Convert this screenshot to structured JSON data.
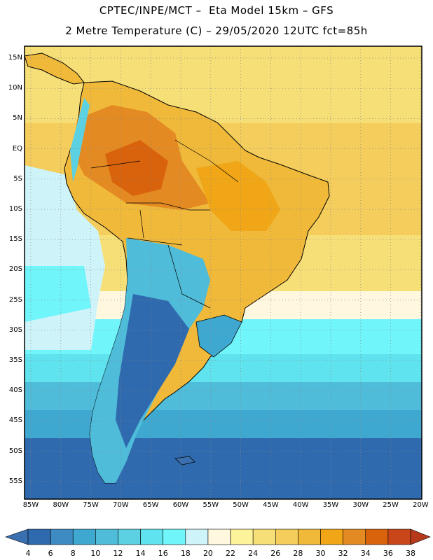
{
  "header": {
    "line1": "CPTEC/INPE/MCT –  Eta Model 15km – GFS",
    "line2": "2 Metre Temperature (C) – 29/05/2020 12UTC fct=85h"
  },
  "map": {
    "lat_labels": [
      "15N",
      "10N",
      "5N",
      "EQ",
      "5S",
      "10S",
      "15S",
      "20S",
      "25S",
      "30S",
      "35S",
      "40S",
      "45S",
      "50S",
      "55S"
    ],
    "lon_labels": [
      "85W",
      "80W",
      "75W",
      "70W",
      "65W",
      "60W",
      "55W",
      "50W",
      "45W",
      "40W",
      "35W",
      "30W",
      "25W",
      "20W"
    ]
  },
  "colorbar": {
    "levels": [
      4,
      6,
      8,
      10,
      12,
      14,
      16,
      18,
      20,
      22,
      24,
      26,
      28,
      30,
      32,
      34,
      36,
      38
    ],
    "colors": [
      "#3a6fb0",
      "#2f6aae",
      "#3e8bc3",
      "#3fa8d0",
      "#4fbcd9",
      "#5cd1e2",
      "#5fe3ee",
      "#6ff5fa",
      "#cef4fa",
      "#fff8df",
      "#fdf39a",
      "#f7df78",
      "#f4cd5c",
      "#f0b93a",
      "#f0a616",
      "#e48a22",
      "#d9620c",
      "#c9461a",
      "#b6391c"
    ]
  }
}
